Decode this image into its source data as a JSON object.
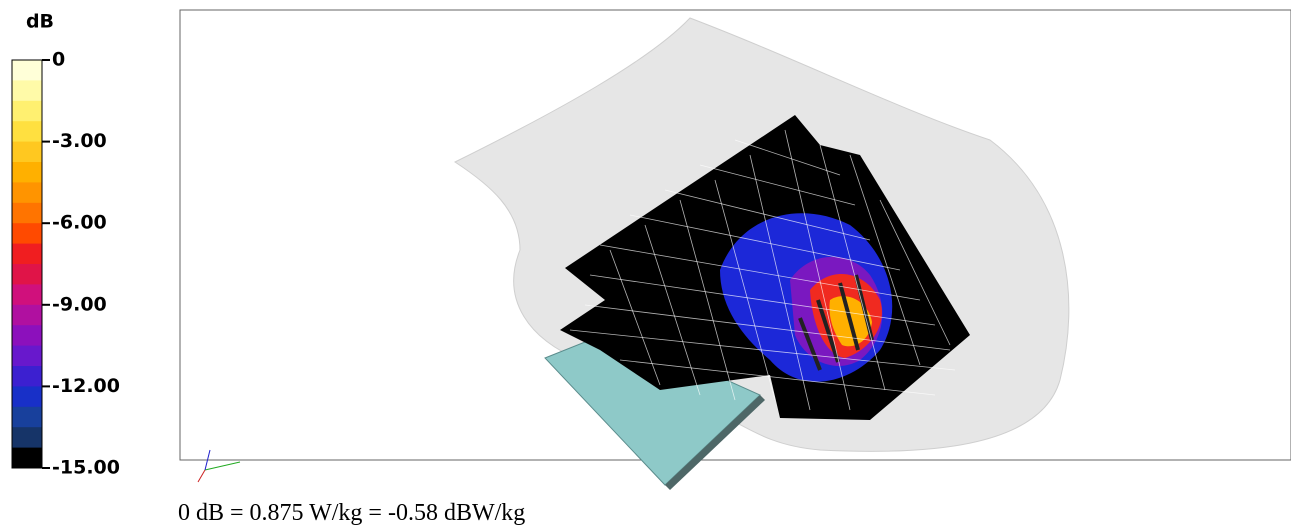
{
  "colorbar": {
    "title": "dB",
    "lim": [
      -15,
      0
    ],
    "ticks": [
      0,
      {
        "value": -3,
        "label": "-3.00"
      },
      {
        "value": -6,
        "label": "-6.00"
      },
      {
        "value": -9,
        "label": "-9.00"
      },
      {
        "value": -12,
        "label": "-12.00"
      },
      {
        "value": -15,
        "label": "-15.00"
      }
    ],
    "colors": [
      "#ffffd8",
      "#fffaa8",
      "#fff070",
      "#ffe040",
      "#ffc820",
      "#ffb000",
      "#ff9400",
      "#ff7400",
      "#ff4a00",
      "#f01e20",
      "#e01448",
      "#d0107c",
      "#b010a0",
      "#8c10bc",
      "#6818cc",
      "#3c20d0",
      "#1830c8",
      "#18409c",
      "#163468",
      "#000000"
    ]
  },
  "caption": "0 dB = 0.875 W/kg = -0.58 dBW/kg"
}
